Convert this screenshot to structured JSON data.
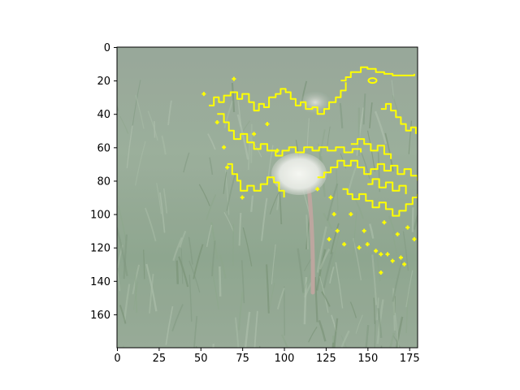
{
  "chart_data": {
    "type": "image",
    "title": "",
    "xlabel": "",
    "ylabel": "",
    "xlim": [
      0,
      180
    ],
    "ylim": [
      180,
      0
    ],
    "xticks": [
      0,
      25,
      50,
      75,
      100,
      125,
      150,
      175
    ],
    "yticks": [
      0,
      20,
      40,
      60,
      80,
      100,
      120,
      140,
      160
    ],
    "image_description": "dandelion seed head in grassy field, washed-out overlay",
    "overlay": {
      "color": "#ffff00",
      "kind": "contour edges",
      "region_extent": {
        "x": [
          55,
          180
        ],
        "y": [
          15,
          145
        ]
      }
    }
  }
}
